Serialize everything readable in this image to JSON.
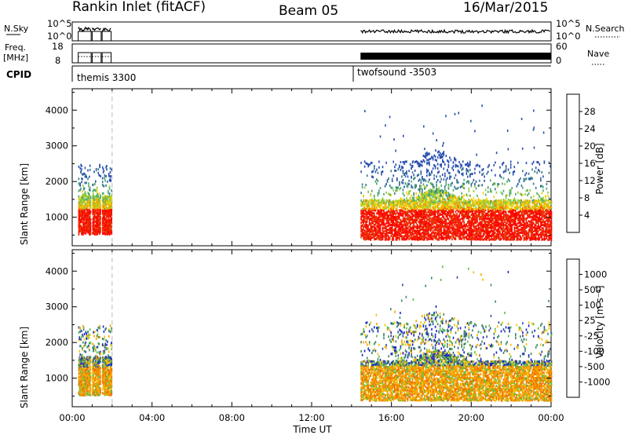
{
  "header": {
    "station": "Rankin Inlet (fitACF)",
    "beam": "Beam 05",
    "date": "16/Mar/2015"
  },
  "top_panels": {
    "nsky_label": "N.Sky",
    "nsky_ticks": [
      "10^5",
      "10^0"
    ],
    "nsearch_label": "N.Search",
    "nsearch_ticks": [
      "10^5",
      "10^0"
    ],
    "freq_label_line1": "Freq.",
    "freq_label_line2": "[MHz]",
    "freq_ticks": [
      "18",
      "8"
    ],
    "nave_label": "Nave",
    "nave_ticks": [
      "60",
      "0"
    ],
    "cpid_label": "CPID",
    "cpid_segments": [
      {
        "name": "themis 3300",
        "start_hour": 0.3
      },
      {
        "name": "twofsound -3503",
        "start_hour": 14.45
      }
    ]
  },
  "colors": {
    "power_scale": [
      "#1a1aff",
      "#2a4fb0",
      "#3a7a8c",
      "#4aa870",
      "#8ccc3a",
      "#f0d000",
      "#f5a000",
      "#f06000",
      "#e83000",
      "#ff0000"
    ],
    "velocity_scale": [
      "#ff0000",
      "#f04010",
      "#f07000",
      "#f5a000",
      "#f0c000",
      "#c8c8c8",
      "#60c040",
      "#3a8a60",
      "#3050a0",
      "#1a20d0"
    ]
  },
  "chart_data": [
    {
      "type": "heatmap",
      "name": "power",
      "ylabel": "Slant Range [km]",
      "yticks": [
        1000,
        2000,
        3000,
        4000
      ],
      "ylim": [
        200,
        4600
      ],
      "xlim": [
        0,
        24
      ],
      "colorbar_label": "Power [dB]",
      "colorbar_ticks": [
        "4",
        "8",
        "12",
        "16",
        "20",
        "24",
        "28"
      ],
      "data_windows_hours": [
        [
          0.3,
          2.0
        ],
        [
          14.4,
          24.0
        ]
      ]
    },
    {
      "type": "heatmap",
      "name": "velocity",
      "ylabel": "Slant Range [km]",
      "yticks": [
        1000,
        2000,
        3000,
        4000
      ],
      "ylim": [
        200,
        4600
      ],
      "xlim": [
        0,
        24
      ],
      "colorbar_label": "Velocity [m s⁻¹]",
      "colorbar_ticks": [
        "-1000",
        "-500",
        "-100",
        "-25",
        "25",
        "100",
        "500",
        "1000"
      ],
      "data_windows_hours": [
        [
          0.3,
          2.0
        ],
        [
          14.4,
          24.0
        ]
      ]
    }
  ],
  "x_axis": {
    "ticks": [
      "00:00",
      "04:00",
      "08:00",
      "12:00",
      "16:00",
      "20:00",
      "00:00"
    ],
    "label": "Time UT"
  }
}
